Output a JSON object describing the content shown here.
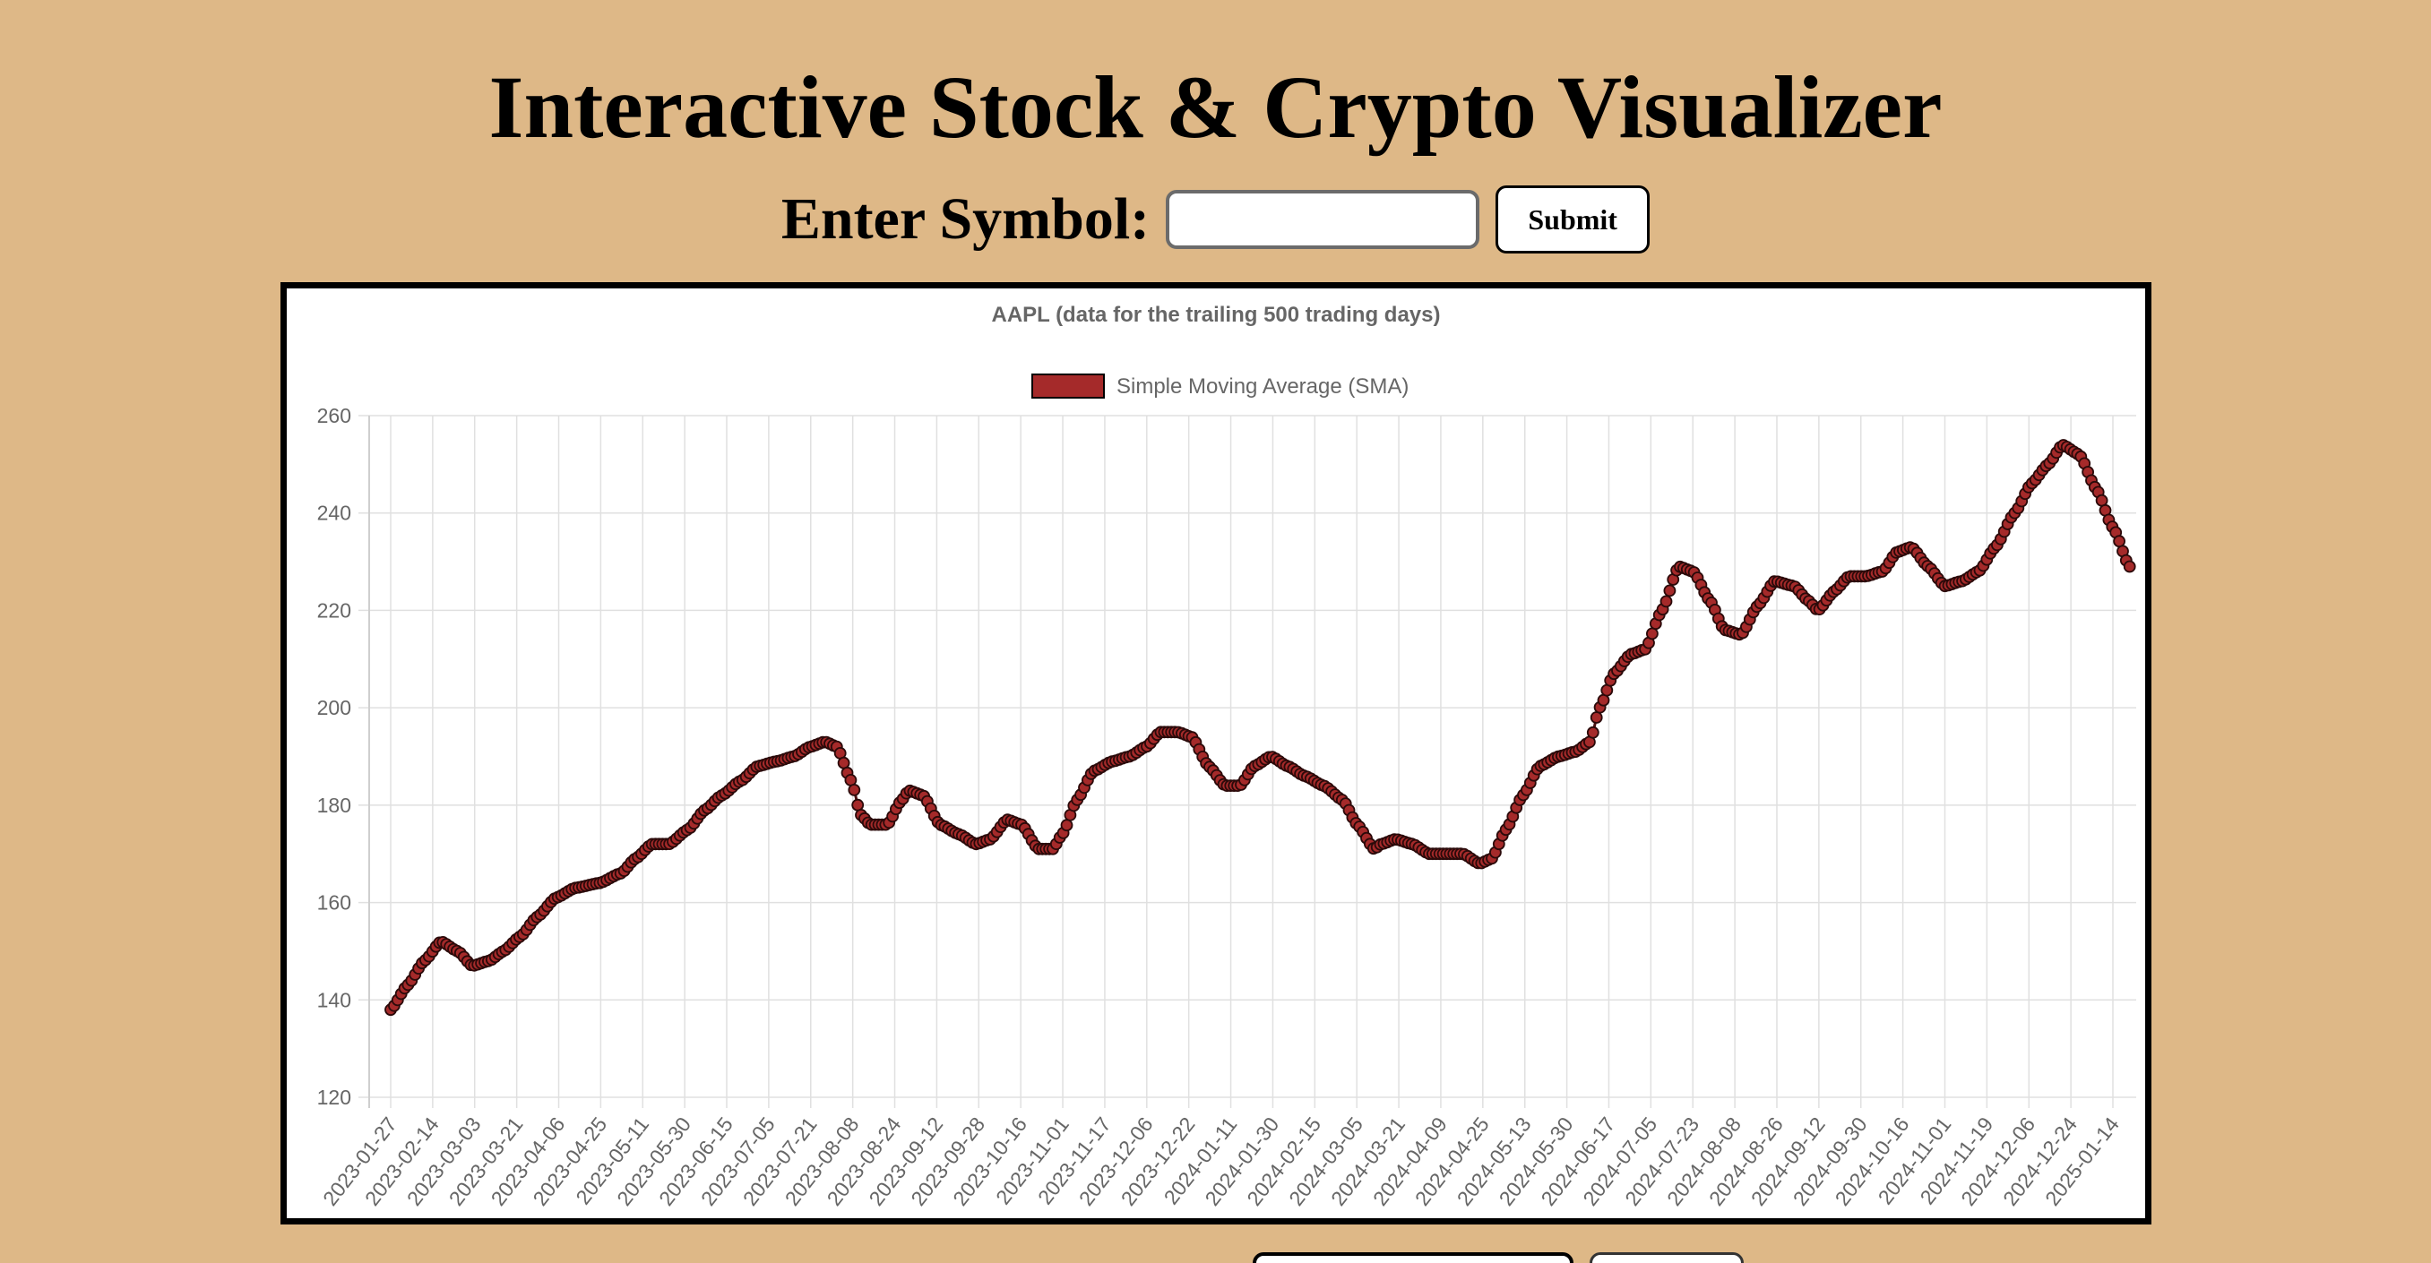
{
  "page": {
    "title": "Interactive Stock & Crypto Visualizer",
    "symbol_label": "Enter Symbol:",
    "symbol_input_value": "",
    "submit_label": "Submit"
  },
  "colors": {
    "background": "#deb887",
    "series_fill": "#a52a2a",
    "series_stroke": "#4a1010"
  },
  "chart_data": {
    "type": "line",
    "title": "AAPL (data for the trailing 500 trading days)",
    "legend_position": "top-center",
    "grid": true,
    "ylim": [
      120,
      260
    ],
    "yticks": [
      120,
      140,
      160,
      180,
      200,
      220,
      240,
      260
    ],
    "xtick_labels": [
      "2023-01-27",
      "2023-02-14",
      "2023-03-03",
      "2023-03-21",
      "2023-04-06",
      "2023-04-25",
      "2023-05-11",
      "2023-05-30",
      "2023-06-15",
      "2023-07-05",
      "2023-07-21",
      "2023-08-08",
      "2023-08-24",
      "2023-09-12",
      "2023-09-28",
      "2023-10-16",
      "2023-11-01",
      "2023-11-17",
      "2023-12-06",
      "2023-12-22",
      "2024-01-11",
      "2024-01-30",
      "2024-02-15",
      "2024-03-05",
      "2024-03-21",
      "2024-04-09",
      "2024-04-25",
      "2024-05-13",
      "2024-05-30",
      "2024-06-17",
      "2024-07-05",
      "2024-07-23",
      "2024-08-08",
      "2024-08-26",
      "2024-09-12",
      "2024-09-30",
      "2024-10-16",
      "2024-11-01",
      "2024-11-19",
      "2024-12-06",
      "2024-12-24",
      "2025-01-14"
    ],
    "series": [
      {
        "name": "Simple Moving Average (SMA)",
        "color": "#a52a2a",
        "keypoints": [
          {
            "date": "2023-01-27",
            "value": 138
          },
          {
            "date": "2023-02-03",
            "value": 143
          },
          {
            "date": "2023-02-10",
            "value": 148
          },
          {
            "date": "2023-02-17",
            "value": 152
          },
          {
            "date": "2023-02-24",
            "value": 150
          },
          {
            "date": "2023-03-02",
            "value": 147
          },
          {
            "date": "2023-03-09",
            "value": 148
          },
          {
            "date": "2023-03-15",
            "value": 150
          },
          {
            "date": "2023-03-22",
            "value": 153
          },
          {
            "date": "2023-03-29",
            "value": 157
          },
          {
            "date": "2023-04-06",
            "value": 161
          },
          {
            "date": "2023-04-14",
            "value": 163
          },
          {
            "date": "2023-04-24",
            "value": 164
          },
          {
            "date": "2023-05-03",
            "value": 166
          },
          {
            "date": "2023-05-09",
            "value": 169
          },
          {
            "date": "2023-05-16",
            "value": 172
          },
          {
            "date": "2023-05-23",
            "value": 172
          },
          {
            "date": "2023-05-31",
            "value": 175
          },
          {
            "date": "2023-06-07",
            "value": 179
          },
          {
            "date": "2023-06-14",
            "value": 182
          },
          {
            "date": "2023-06-22",
            "value": 185
          },
          {
            "date": "2023-06-29",
            "value": 188
          },
          {
            "date": "2023-07-07",
            "value": 189
          },
          {
            "date": "2023-07-14",
            "value": 190
          },
          {
            "date": "2023-07-21",
            "value": 192
          },
          {
            "date": "2023-07-27",
            "value": 193
          },
          {
            "date": "2023-08-01",
            "value": 192
          },
          {
            "date": "2023-08-07",
            "value": 185
          },
          {
            "date": "2023-08-11",
            "value": 178
          },
          {
            "date": "2023-08-15",
            "value": 176
          },
          {
            "date": "2023-08-22",
            "value": 176
          },
          {
            "date": "2023-08-28",
            "value": 181
          },
          {
            "date": "2023-08-31",
            "value": 183
          },
          {
            "date": "2023-09-06",
            "value": 182
          },
          {
            "date": "2023-09-13",
            "value": 176
          },
          {
            "date": "2023-09-21",
            "value": 174
          },
          {
            "date": "2023-09-28",
            "value": 172
          },
          {
            "date": "2023-10-04",
            "value": 173
          },
          {
            "date": "2023-10-11",
            "value": 177
          },
          {
            "date": "2023-10-17",
            "value": 176
          },
          {
            "date": "2023-10-24",
            "value": 171
          },
          {
            "date": "2023-10-30",
            "value": 171
          },
          {
            "date": "2023-11-03",
            "value": 174
          },
          {
            "date": "2023-11-09",
            "value": 181
          },
          {
            "date": "2023-11-16",
            "value": 187
          },
          {
            "date": "2023-11-24",
            "value": 189
          },
          {
            "date": "2023-12-01",
            "value": 190
          },
          {
            "date": "2023-12-08",
            "value": 192
          },
          {
            "date": "2023-12-14",
            "value": 195
          },
          {
            "date": "2023-12-21",
            "value": 195
          },
          {
            "date": "2023-12-27",
            "value": 194
          },
          {
            "date": "2024-01-03",
            "value": 188
          },
          {
            "date": "2024-01-10",
            "value": 184
          },
          {
            "date": "2024-01-16",
            "value": 184
          },
          {
            "date": "2024-01-22",
            "value": 188
          },
          {
            "date": "2024-01-29",
            "value": 190
          },
          {
            "date": "2024-02-05",
            "value": 188
          },
          {
            "date": "2024-02-12",
            "value": 186
          },
          {
            "date": "2024-02-20",
            "value": 184
          },
          {
            "date": "2024-02-28",
            "value": 181
          },
          {
            "date": "2024-03-05",
            "value": 176
          },
          {
            "date": "2024-03-12",
            "value": 171
          },
          {
            "date": "2024-03-15",
            "value": 172
          },
          {
            "date": "2024-03-21",
            "value": 173
          },
          {
            "date": "2024-03-28",
            "value": 172
          },
          {
            "date": "2024-04-04",
            "value": 170
          },
          {
            "date": "2024-04-11",
            "value": 170
          },
          {
            "date": "2024-04-18",
            "value": 170
          },
          {
            "date": "2024-04-25",
            "value": 168
          },
          {
            "date": "2024-04-30",
            "value": 169
          },
          {
            "date": "2024-05-06",
            "value": 175
          },
          {
            "date": "2024-05-13",
            "value": 182
          },
          {
            "date": "2024-05-20",
            "value": 188
          },
          {
            "date": "2024-05-28",
            "value": 190
          },
          {
            "date": "2024-06-04",
            "value": 191
          },
          {
            "date": "2024-06-10",
            "value": 193
          },
          {
            "date": "2024-06-14",
            "value": 200
          },
          {
            "date": "2024-06-20",
            "value": 207
          },
          {
            "date": "2024-06-27",
            "value": 211
          },
          {
            "date": "2024-07-03",
            "value": 212
          },
          {
            "date": "2024-07-10",
            "value": 220
          },
          {
            "date": "2024-07-17",
            "value": 229
          },
          {
            "date": "2024-07-23",
            "value": 228
          },
          {
            "date": "2024-07-30",
            "value": 222
          },
          {
            "date": "2024-08-05",
            "value": 216
          },
          {
            "date": "2024-08-12",
            "value": 215
          },
          {
            "date": "2024-08-19",
            "value": 221
          },
          {
            "date": "2024-08-26",
            "value": 226
          },
          {
            "date": "2024-09-03",
            "value": 225
          },
          {
            "date": "2024-09-09",
            "value": 222
          },
          {
            "date": "2024-09-13",
            "value": 220
          },
          {
            "date": "2024-09-20",
            "value": 224
          },
          {
            "date": "2024-09-26",
            "value": 227
          },
          {
            "date": "2024-10-03",
            "value": 227
          },
          {
            "date": "2024-10-10",
            "value": 228
          },
          {
            "date": "2024-10-16",
            "value": 232
          },
          {
            "date": "2024-10-22",
            "value": 233
          },
          {
            "date": "2024-10-29",
            "value": 229
          },
          {
            "date": "2024-11-05",
            "value": 225
          },
          {
            "date": "2024-11-12",
            "value": 226
          },
          {
            "date": "2024-11-19",
            "value": 228
          },
          {
            "date": "2024-11-26",
            "value": 233
          },
          {
            "date": "2024-12-04",
            "value": 240
          },
          {
            "date": "2024-12-11",
            "value": 246
          },
          {
            "date": "2024-12-18",
            "value": 250
          },
          {
            "date": "2024-12-24",
            "value": 254
          },
          {
            "date": "2024-12-31",
            "value": 252
          },
          {
            "date": "2025-01-07",
            "value": 245
          },
          {
            "date": "2025-01-14",
            "value": 237
          },
          {
            "date": "2025-01-21",
            "value": 229
          }
        ]
      }
    ]
  }
}
